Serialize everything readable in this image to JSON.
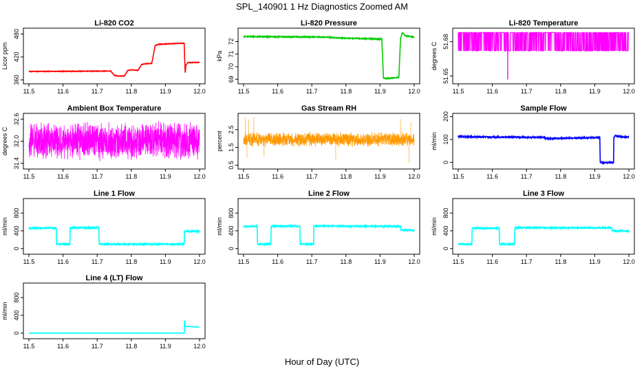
{
  "figure": {
    "title": "SPL_140901  1 Hz Diagnostics Zoomed AM",
    "xlabel": "Hour of Day (UTC)"
  },
  "chart_data": [
    {
      "type": "line",
      "title": "Li-820 CO2",
      "ylabel": "Licor ppm",
      "color": "#ff0000",
      "xlim": [
        11.5,
        12.0
      ],
      "ylim": [
        355,
        490
      ],
      "yticks": [
        "360",
        "420",
        "480"
      ],
      "xticks": [
        "11.5",
        "11.6",
        "11.7",
        "11.8",
        "11.9",
        "12.0"
      ],
      "segments": [
        [
          11.5,
          382
        ],
        [
          11.74,
          383
        ],
        [
          11.75,
          372
        ],
        [
          11.76,
          370
        ],
        [
          11.78,
          370
        ],
        [
          11.79,
          385
        ],
        [
          11.8,
          386
        ],
        [
          11.82,
          385
        ],
        [
          11.83,
          400
        ],
        [
          11.84,
          402
        ],
        [
          11.86,
          403
        ],
        [
          11.87,
          450
        ],
        [
          11.88,
          453
        ],
        [
          11.9,
          454
        ],
        [
          11.92,
          455
        ],
        [
          11.955,
          456
        ],
        [
          11.958,
          375
        ],
        [
          11.96,
          398
        ],
        [
          11.965,
          405
        ],
        [
          12.0,
          406
        ]
      ],
      "noise": 0.6
    },
    {
      "type": "line",
      "title": "Li-820 Pressure",
      "ylabel": "kPa",
      "color": "#00cc00",
      "xlim": [
        11.5,
        12.0
      ],
      "ylim": [
        68.8,
        72.9
      ],
      "yticks": [
        "69",
        "70",
        "71",
        "72"
      ],
      "xticks": [
        "11.5",
        "11.6",
        "11.7",
        "11.8",
        "11.9",
        "12.0"
      ],
      "segments": [
        [
          11.5,
          72.4
        ],
        [
          11.75,
          72.35
        ],
        [
          11.76,
          72.3
        ],
        [
          11.905,
          72.2
        ],
        [
          11.91,
          69.1
        ],
        [
          11.918,
          69.05
        ],
        [
          11.955,
          69.15
        ],
        [
          11.96,
          72.2
        ],
        [
          11.965,
          72.7
        ],
        [
          11.975,
          72.45
        ],
        [
          12.0,
          72.35
        ]
      ],
      "noise": 0.03
    },
    {
      "type": "spike",
      "title": "Li-820 Temperature",
      "ylabel": "degrees C",
      "color": "#ff00ff",
      "xlim": [
        11.5,
        12.0
      ],
      "ylim": [
        51.645,
        51.69
      ],
      "yticks": [
        "51.65",
        "51.68"
      ],
      "xticks": [
        "11.5",
        "11.6",
        "11.7",
        "11.8",
        "11.9",
        "12.0"
      ],
      "low": 51.672,
      "high": 51.688,
      "dips": [
        [
          11.645,
          51.647
        ]
      ]
    },
    {
      "type": "noise",
      "title": "Ambient Box Temperature",
      "ylabel": "degrees C",
      "color": "#ff00ff",
      "xlim": [
        11.5,
        12.0
      ],
      "ylim": [
        31.3,
        32.7
      ],
      "yticks": [
        "31.4",
        "32.0",
        "32.6"
      ],
      "xticks": [
        "11.5",
        "11.6",
        "11.7",
        "11.8",
        "11.9",
        "12.0"
      ],
      "mean": 32.0,
      "spread": 0.55
    },
    {
      "type": "noise",
      "title": "Gas Stream RH",
      "ylabel": "percent",
      "color": "#ff9900",
      "xlim": [
        11.5,
        12.0
      ],
      "ylim": [
        0.4,
        3.3
      ],
      "yticks": [
        "0.5",
        "1.5",
        "2.5"
      ],
      "xticks": [
        "11.5",
        "11.6",
        "11.7",
        "11.8",
        "11.9",
        "12.0"
      ],
      "mean": 1.95,
      "spread": 0.45,
      "spikes": [
        [
          11.505,
          3.2
        ],
        [
          11.51,
          0.9
        ],
        [
          11.515,
          3.1
        ],
        [
          11.53,
          3.2
        ],
        [
          11.56,
          1.0
        ],
        [
          11.77,
          0.8
        ],
        [
          11.96,
          3.1
        ],
        [
          11.985,
          0.6
        ],
        [
          11.99,
          2.9
        ]
      ]
    },
    {
      "type": "line",
      "title": "Sample Flow",
      "ylabel": "ml/min",
      "color": "#0000ff",
      "xlim": [
        11.5,
        12.0
      ],
      "ylim": [
        -20,
        205
      ],
      "yticks": [
        "0",
        "100",
        "200"
      ],
      "xticks": [
        "11.5",
        "11.6",
        "11.7",
        "11.8",
        "11.9",
        "12.0"
      ],
      "segments": [
        [
          11.5,
          112
        ],
        [
          11.75,
          109
        ],
        [
          11.76,
          104
        ],
        [
          11.9,
          108
        ],
        [
          11.915,
          108
        ],
        [
          11.916,
          0
        ],
        [
          11.955,
          -1
        ],
        [
          11.956,
          108
        ],
        [
          11.96,
          118
        ],
        [
          11.97,
          113
        ],
        [
          12.0,
          110
        ]
      ],
      "noise": 2.5
    },
    {
      "type": "line",
      "title": "Line 1 Flow",
      "ylabel": "ml/min",
      "color": "#00ffff",
      "xlim": [
        11.5,
        12.0
      ],
      "ylim": [
        -80,
        1080
      ],
      "yticks": [
        "0",
        "400",
        "800"
      ],
      "xticks": [
        "11.5",
        "11.6",
        "11.7",
        "11.8",
        "11.9",
        "12.0"
      ],
      "segments": [
        [
          11.5,
          460
        ],
        [
          11.58,
          460
        ],
        [
          11.581,
          100
        ],
        [
          11.62,
          100
        ],
        [
          11.621,
          470
        ],
        [
          11.705,
          470
        ],
        [
          11.706,
          100
        ],
        [
          11.955,
          100
        ],
        [
          11.956,
          390
        ],
        [
          12.0,
          390
        ]
      ],
      "noise": 12
    },
    {
      "type": "line",
      "title": "Line 2 Flow",
      "ylabel": "ml/min",
      "color": "#00ffff",
      "xlim": [
        11.5,
        12.0
      ],
      "ylim": [
        -80,
        1080
      ],
      "yticks": [
        "0",
        "400",
        "800"
      ],
      "xticks": [
        "11.5",
        "11.6",
        "11.7",
        "11.8",
        "11.9",
        "12.0"
      ],
      "segments": [
        [
          11.5,
          500
        ],
        [
          11.54,
          500
        ],
        [
          11.541,
          100
        ],
        [
          11.58,
          100
        ],
        [
          11.581,
          505
        ],
        [
          11.665,
          505
        ],
        [
          11.666,
          100
        ],
        [
          11.705,
          100
        ],
        [
          11.706,
          510
        ],
        [
          11.96,
          500
        ],
        [
          11.961,
          420
        ],
        [
          12.0,
          410
        ]
      ],
      "noise": 12
    },
    {
      "type": "line",
      "title": "Line 3 Flow",
      "ylabel": "ml/min",
      "color": "#00ffff",
      "xlim": [
        11.5,
        12.0
      ],
      "ylim": [
        -80,
        1080
      ],
      "yticks": [
        "0",
        "400",
        "800"
      ],
      "xticks": [
        "11.5",
        "11.6",
        "11.7",
        "11.8",
        "11.9",
        "12.0"
      ],
      "segments": [
        [
          11.5,
          100
        ],
        [
          11.54,
          100
        ],
        [
          11.541,
          460
        ],
        [
          11.62,
          460
        ],
        [
          11.621,
          100
        ],
        [
          11.665,
          100
        ],
        [
          11.666,
          470
        ],
        [
          11.95,
          470
        ],
        [
          11.951,
          400
        ],
        [
          12.0,
          395
        ]
      ],
      "noise": 12
    },
    {
      "type": "line",
      "title": "Line 4 (LT) Flow",
      "ylabel": "ml/min",
      "color": "#00ffff",
      "xlim": [
        11.5,
        12.0
      ],
      "ylim": [
        -80,
        1080
      ],
      "yticks": [
        "0",
        "400",
        "800"
      ],
      "xticks": [
        "11.5",
        "11.6",
        "11.7",
        "11.8",
        "11.9",
        "12.0"
      ],
      "segments": [
        [
          11.5,
          0
        ],
        [
          11.955,
          0
        ],
        [
          11.956,
          290
        ],
        [
          11.958,
          140
        ],
        [
          11.96,
          150
        ],
        [
          12.0,
          135
        ]
      ],
      "noise": 2
    }
  ]
}
